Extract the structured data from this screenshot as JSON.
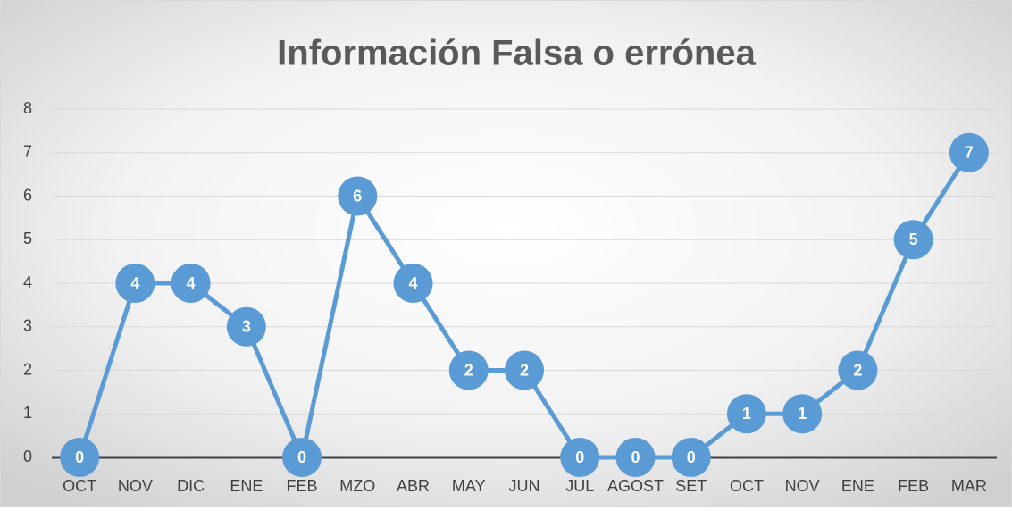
{
  "chart_data": {
    "type": "line",
    "title": "Información Falsa o errónea",
    "categories": [
      "OCT",
      "NOV",
      "DIC",
      "ENE",
      "FEB",
      "MZO",
      "ABR",
      "MAY",
      "JUN",
      "JUL",
      "AGOST",
      "SET",
      "OCT",
      "NOV",
      "ENE",
      "FEB",
      "MAR"
    ],
    "values": [
      0,
      4,
      4,
      3,
      0,
      6,
      4,
      2,
      2,
      0,
      0,
      0,
      1,
      1,
      2,
      5,
      7
    ],
    "color": "#5b9bd5",
    "ylim": [
      0,
      8
    ],
    "yticks": [
      0,
      1,
      2,
      3,
      4,
      5,
      6,
      7,
      8
    ],
    "grid": true
  }
}
